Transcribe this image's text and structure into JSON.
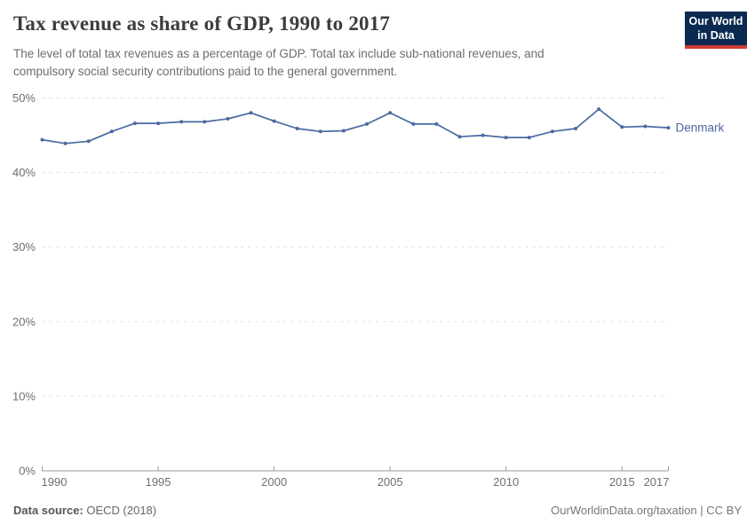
{
  "header": {
    "title": "Tax revenue as share of GDP, 1990 to 2017",
    "subtitle": "The level of total tax revenues as a percentage of GDP. Total tax include sub-national revenues, and compulsory social security contributions paid to the general government.",
    "logo": {
      "line1": "Our World",
      "line2": "in Data"
    }
  },
  "footer": {
    "source_label": "Data source:",
    "source_value": " OECD (2018)",
    "credit": "OurWorldinData.org/taxation | CC BY"
  },
  "colors": {
    "line": "#4a69a3",
    "entity_label": "#4a69a3",
    "grid": "#dddddd",
    "axis": "#999999",
    "tick_label": "#6e6e6e",
    "logo_bg": "#0b2a51",
    "logo_accent": "#ce3b32"
  },
  "chart_data": {
    "type": "line",
    "title": "Tax revenue as share of GDP, 1990 to 2017",
    "xlabel": "",
    "ylabel": "",
    "x": [
      1990,
      1991,
      1992,
      1993,
      1994,
      1995,
      1996,
      1997,
      1998,
      1999,
      2000,
      2001,
      2002,
      2003,
      2004,
      2005,
      2006,
      2007,
      2008,
      2009,
      2010,
      2011,
      2012,
      2013,
      2014,
      2015,
      2016,
      2017
    ],
    "series": [
      {
        "name": "Denmark",
        "values": [
          44.4,
          43.9,
          44.2,
          45.5,
          46.6,
          46.6,
          46.8,
          46.8,
          47.2,
          48.0,
          46.9,
          45.9,
          45.5,
          45.6,
          46.5,
          48.0,
          46.5,
          46.5,
          44.8,
          45.0,
          44.7,
          44.7,
          45.5,
          45.9,
          48.5,
          46.1,
          46.2,
          46.0
        ]
      }
    ],
    "xticks": [
      1990,
      1995,
      2000,
      2005,
      2010,
      2015,
      2017
    ],
    "yticks": [
      0,
      10,
      20,
      30,
      40,
      50
    ],
    "ytick_labels": [
      "0%",
      "10%",
      "20%",
      "30%",
      "40%",
      "50%"
    ],
    "xlim": [
      1990,
      2017
    ],
    "ylim": [
      0,
      50
    ],
    "grid": "horizontal-dashed",
    "legend": "inline-end-label"
  }
}
